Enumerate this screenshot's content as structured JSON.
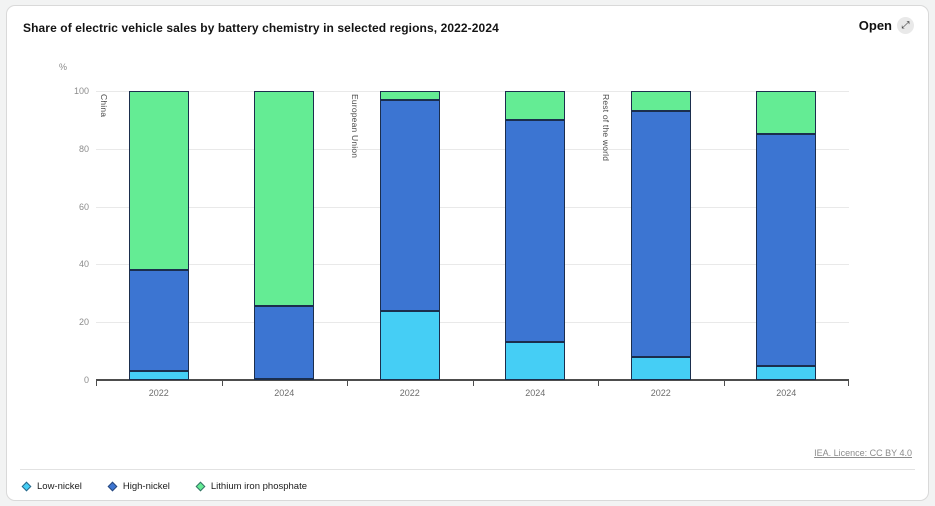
{
  "card": {
    "title": "Share of electric vehicle sales by battery chemistry in selected regions, 2022-2024",
    "open_label": "Open",
    "open_icon": "⤢",
    "license_label": "IEA. Licence: CC BY 4.0"
  },
  "chart_data": {
    "type": "bar",
    "stacked": true,
    "title": "Share of electric vehicle sales by battery chemistry in selected regions, 2022-2024",
    "ylabel": "%",
    "ylim": [
      0,
      100
    ],
    "yticks": [
      0,
      20,
      40,
      60,
      80,
      100
    ],
    "grid": true,
    "legend_position": "bottom",
    "groups": [
      "China",
      "European Union",
      "Rest of the world"
    ],
    "categories": [
      "2022",
      "2024",
      "2022",
      "2024",
      "2022",
      "2024"
    ],
    "series": [
      {
        "name": "Low-nickel",
        "color": "#45cef5",
        "values": [
          3,
          0.5,
          24,
          13,
          8,
          5
        ]
      },
      {
        "name": "High-nickel",
        "color": "#3c75d2",
        "values": [
          35,
          25,
          73,
          77,
          85,
          80
        ]
      },
      {
        "name": "Lithium iron phosphate",
        "color": "#64ec94",
        "values": [
          62,
          74.5,
          3,
          10,
          7,
          15
        ]
      }
    ]
  }
}
